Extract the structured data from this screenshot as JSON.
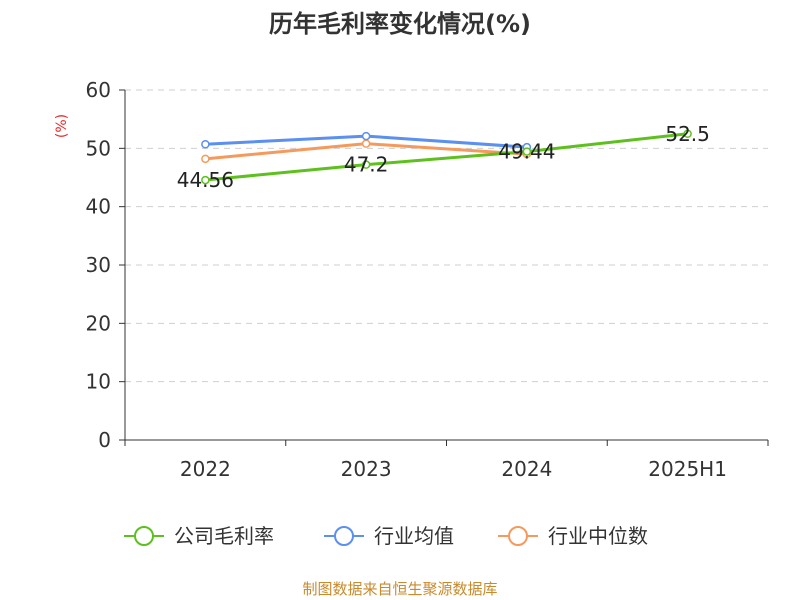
{
  "chart_data": {
    "type": "line",
    "title": "历年毛利率变化情况(%)",
    "ylabel": "(%)",
    "xlabel": "",
    "categories": [
      "2022",
      "2023",
      "2024",
      "2025H1"
    ],
    "ylim": [
      0,
      60
    ],
    "yticks": [
      0,
      10,
      20,
      30,
      40,
      50,
      60
    ],
    "grid": true,
    "legend_position": "bottom",
    "series": [
      {
        "name": "公司毛利率",
        "color": "#5ec01e",
        "values": [
          44.56,
          47.2,
          49.44,
          52.5
        ],
        "labels": [
          "44.56",
          "47.2",
          "49.44",
          "52.5"
        ]
      },
      {
        "name": "行业均值",
        "color": "#5b8ff0",
        "values": [
          50.7,
          52.1,
          50.2,
          null
        ]
      },
      {
        "name": "行业中位数",
        "color": "#f59a5c",
        "values": [
          48.2,
          50.8,
          49.0,
          null
        ]
      }
    ]
  },
  "source_text": "制图数据来自恒生聚源数据库"
}
